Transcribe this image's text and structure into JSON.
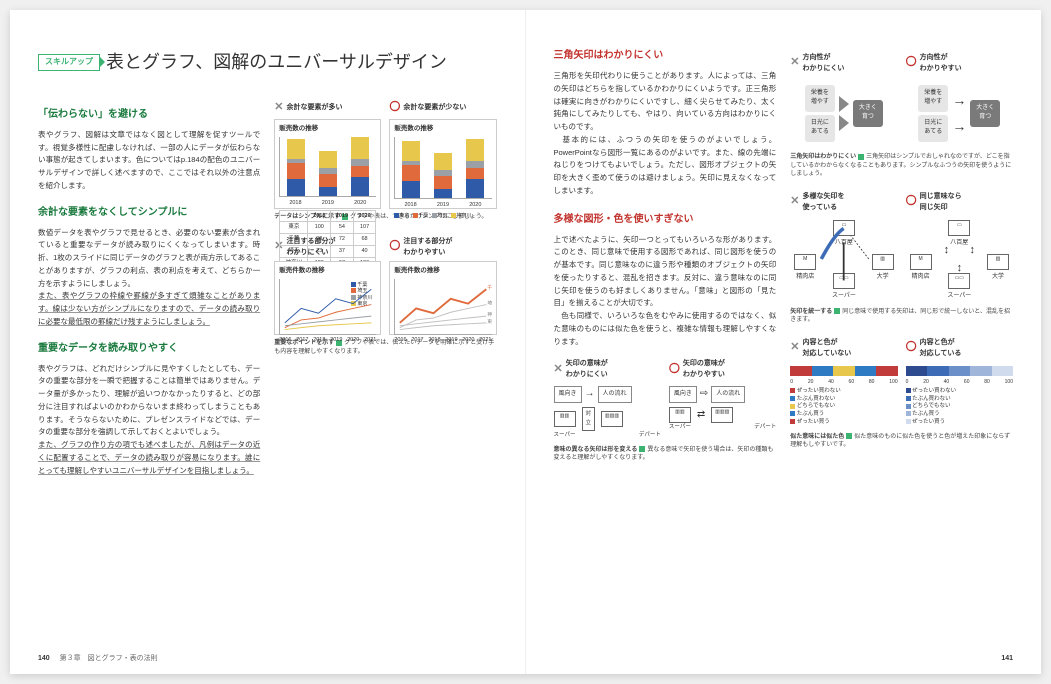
{
  "badge": "スキルアップ",
  "main_title": "表とグラフ、図解のユニバーサルデザイン",
  "left": {
    "s1_h": "「伝わらない」を避ける",
    "s1_body": "表やグラフ、図解は文章ではなく図として理解を促すツールです。視覚多様性に配慮しなければ、一部の人にデータが伝わらない事態が起きてしまいます。色についてはp.184の配色のユニバーサルデザインで詳しく述べますので、ここではそれ以外の注意点を紹介します。",
    "s2_h": "余計な要素をなくしてシンプルに",
    "s2_body1": "数値データを表やグラフで見せるとき、必要のない要素が含まれていると重要なデータが読み取りにくくなってしまいます。時折、1枚のスライドに同じデータのグラフと表が両方示してあることがありますが、グラフの利点、表の利点を考えて、どちらか一方を示すようにしましょう。",
    "s2_body2": "また、表やグラフの枠線や罫線が多すぎて煩雑なことがあります。線は少ない方がシンプルになりますので、データの読み取りに必要な最低限の罫線だけ残すようにしましょう。",
    "s3_h": "重要なデータを読み取りやすく",
    "s3_body1": "表やグラフは、どれだけシンプルに見やすくしたとしても、データの重要な部分を一瞬で把握することは簡単ではありません。データ量が多かったり、理解が追いつかなかったりすると、どの部分に注目すればよいのかわからないまま終わってしまうこともあります。そうならないために、プレゼンスライドなどでは、データの重要な部分を強調して示しておくとよいでしょう。",
    "s3_body2": "また、グラフの作り方の項でも述べましたが、凡例はデータの近くに配置することで、データの読み取りが容易になります。誰にとっても理解しやすいユニバーサルデザインを目指しましょう。",
    "cmp1_bad": "余計な要素が多い",
    "cmp1_good": "余計な要素が少ない",
    "cmp2_bad": "注目する部分が\nわかりにくい",
    "cmp2_good": "注目する部分が\nわかりやすい",
    "chart_title": "販売数の推移",
    "chart2_title": "販売件数の推移",
    "caption1": "データはシンプルに示す　グラフや表は、できるだけシンプルにしましょう。",
    "caption2": "重要なポイントを示す　グラフや表では、伝えたいデータを明確に示すと受け手も内容を理解しやすくなります。",
    "chart1": {
      "years": [
        "2018",
        "2019",
        "2020"
      ],
      "series": [
        "東京",
        "千葉",
        "埼玉",
        "神奈川"
      ],
      "colors": [
        "#2f5aa8",
        "#e06a3b",
        "#9aa0a6",
        "#e7c84d"
      ],
      "values": [
        [
          100,
          54,
          107
        ],
        [
          90,
          72,
          68
        ],
        [
          23,
          37,
          40
        ],
        [
          120,
          97,
          130
        ]
      ],
      "ytick_step": 50,
      "ymax": 350
    },
    "table1": {
      "cols": [
        "",
        "2018",
        "2019",
        "2020"
      ],
      "rows": [
        [
          "東京",
          "100",
          "54",
          "107"
        ],
        [
          "千葉",
          "90",
          "72",
          "68"
        ],
        [
          "埼玉",
          "23",
          "37",
          "40"
        ],
        [
          "神奈川",
          "120",
          "97",
          "130"
        ]
      ]
    },
    "chart2": {
      "xlabels": [
        "2016",
        "2017",
        "2018",
        "2019",
        "2020",
        "2021"
      ],
      "series": [
        "千葉",
        "埼玉",
        "神奈川",
        "東京"
      ],
      "highlight_color": "#e06a3b",
      "dim_color": "#c0c0c0",
      "ymax": 100
    }
  },
  "right": {
    "r1_h": "三角矢印はわかりにくい",
    "r1_body": "三角形を矢印代わりに使うことがあります。人によっては、三角の矢印はどちらを指しているかわかりにくいようです。正三角形は確実に向きがわかりにくいですし、細く尖らせてみたり、太く鈍角にしてみたりしても、やはり、向いている方向はわかりにくいものです。\n　基本的には、ふつうの矢印を使うのがよいでしょう。PowerPointなら図形一覧にあるのがよいです。また、線の先端にねじりをつけてもよいでしょう。ただし、図形オブジェクトの矢印を大きく歪めて使うのは避けましょう。矢印に見えなくなってしまいます。",
    "r2_h": "多様な図形・色を使いすぎない",
    "r2_body": "上で述べたように、矢印一つとってもいろいろな形があります。このとき、同じ意味で使用する図形であれば、同じ図形を使うのが基本です。同じ意味なのに違う形や種類のオブジェクトの矢印を使ったりすると、混乱を招きます。反対に、違う意味なのに同じ矢印を使うのも好ましくありません。「意味」と図形の「見た目」を揃えることが大切です。\n　色も同様で、いろいろな色をむやみに使用するのではなく、似た意味のものには似た色を使うと、複雑な情報も理解しやすくなります。",
    "cmpA_bad": "方向性が\nわかりにくい",
    "cmpA_good": "方向性が\nわかりやすい",
    "cmpB_bad": "多様な矢印を\n使っている",
    "cmpB_good": "同じ意味なら\n同じ矢印",
    "cmpC_bad": "矢印の意味が\nわかりにくい",
    "cmpC_good": "矢印の意味が\nわかりやすい",
    "cmpD_bad": "内容と色が\n対応していない",
    "cmpD_good": "内容と色が\n対応している",
    "captionA": "三角矢印はわかりにくい　三角矢印はシンプルでおしゃれなのですが、どこを指しているかわからなくなることもあります。シンプルなふつうの矢印を使うようにしましょう。",
    "captionB": "矢印を統一する　同じ意味で使用する矢印は、同じ形で統一しないと、混乱を招きます。",
    "captionC": "意味の異なる矢印は形を変える　異なる意味で矢印を使う場合は、矢印の種類も変えると理解がしやすくなります。",
    "captionD": "似た意味には似た色　似た意味のものに似た色を使うと色が増えた印象にならず理解もしやすいです。",
    "arrow_nodes": {
      "a": "栄養を\n増やす",
      "b": "日光に\nあてる",
      "c": "大きく\n育つ"
    },
    "shop_nodes": {
      "a": "八百屋",
      "b": "精肉店",
      "c": "スーパー",
      "d": "大学",
      "m": "M"
    },
    "flow_nodes": {
      "wind": "風向き",
      "people": "人の流れ",
      "super": "スーパー",
      "dept": "デパート",
      "rel": "対\n立"
    },
    "colorbar": {
      "scale": [
        "0",
        "20",
        "40",
        "60",
        "80",
        "100"
      ],
      "bad_colors": [
        "#c23b3b",
        "#2e7bc4",
        "#e7c84d",
        "#2e7bc4",
        "#c23b3b"
      ],
      "good_colors": [
        "#2e4b8f",
        "#3d6bb5",
        "#6a8fc9",
        "#9fb6da",
        "#d0dcee"
      ],
      "items": [
        "ぜったい買わない",
        "たぶん買わない",
        "どちらでもない",
        "たぶん買う",
        "ぜったい買う"
      ]
    }
  },
  "footer": {
    "left_page": "140",
    "chapter": "第３章　図とグラフ・表の法則",
    "right_page": "141"
  }
}
